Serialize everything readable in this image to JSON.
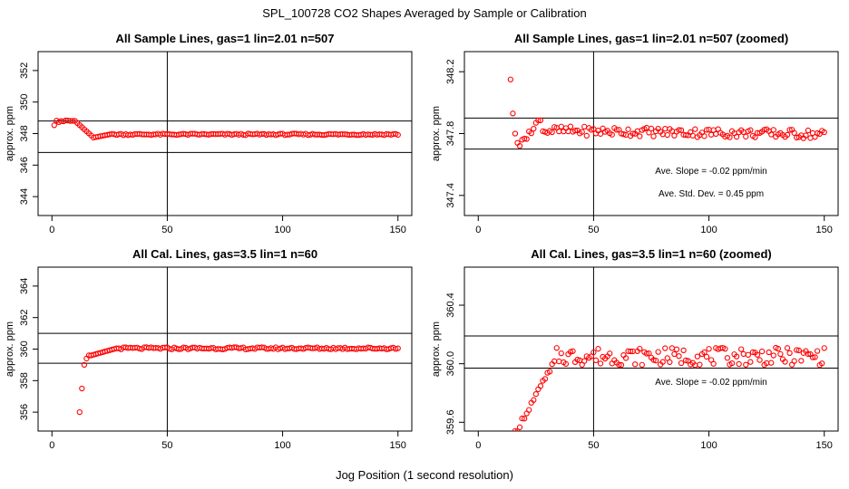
{
  "main_title": "SPL_100728  CO2 Shapes Averaged by Sample or Calibration",
  "x_axis_label": "Jog Position (1 second resolution)",
  "colors": {
    "points": "#ff0000",
    "axes": "#000000"
  },
  "chart_data": [
    {
      "type": "scatter",
      "title": "All Sample Lines, gas=1 lin=2.01 n=507",
      "ylabel": "approx. ppm",
      "xlim": [
        -6,
        156
      ],
      "ylim": [
        342.8,
        353.2
      ],
      "xticks": [
        0,
        50,
        100,
        150
      ],
      "yticks": [
        344,
        346,
        348,
        350,
        352
      ],
      "ytick_labels": [
        "344",
        "346",
        "348",
        "350",
        "352"
      ],
      "hlines": [
        348.8,
        346.8
      ],
      "vline": 50,
      "annotations": [],
      "series": [
        {
          "generator": {
            "x_start": 1,
            "x_end": 150,
            "baseline": 347.95,
            "model": "initial_overshoot_then_flat",
            "start_value": 348.8
          }
        }
      ]
    },
    {
      "type": "scatter",
      "title": "All Sample Lines, gas=1 lin=2.01 n=507 (zoomed)",
      "ylabel": "approx. ppm",
      "xlim": [
        -6,
        156
      ],
      "ylim": [
        347.27,
        348.33
      ],
      "xticks": [
        0,
        50,
        100,
        150
      ],
      "yticks": [
        347.4,
        347.8,
        348.2
      ],
      "ytick_labels": [
        "347.4",
        "347.8",
        "348.2"
      ],
      "hlines": [
        347.9,
        347.7
      ],
      "vline": 50,
      "annotations": [
        "Ave. Slope =  -0.02  ppm/min",
        "Ave. Std. Dev. =  0.45  ppm"
      ],
      "series": [
        {
          "generator": {
            "x_start": 14,
            "x_end": 150,
            "first_values": [
              348.15,
              347.93,
              347.8,
              347.74,
              347.72,
              347.76
            ],
            "baseline": 347.82,
            "model": "dip_then_flat"
          }
        }
      ]
    },
    {
      "type": "scatter",
      "title": "All Cal. Lines, gas=3.5 lin=1 n=60",
      "ylabel": "approx. ppm",
      "xlim": [
        -6,
        156
      ],
      "ylim": [
        354.8,
        365.2
      ],
      "xticks": [
        0,
        50,
        100,
        150
      ],
      "yticks": [
        356,
        358,
        360,
        362,
        364
      ],
      "ytick_labels": [
        "356",
        "358",
        "360",
        "362",
        "364"
      ],
      "hlines": [
        361.0,
        359.1
      ],
      "vline": 50,
      "annotations": [],
      "series": [
        {
          "generator": {
            "x_start": 12,
            "x_end": 150,
            "first_values": [
              356.0,
              357.5,
              359.0,
              359.4,
              359.6
            ],
            "baseline": 360.05,
            "model": "rise_then_flat"
          }
        }
      ]
    },
    {
      "type": "scatter",
      "title": "All Cal. Lines, gas=3.5 lin=1 n=60 (zoomed)",
      "ylabel": "approx. ppm",
      "xlim": [
        -6,
        156
      ],
      "ylim": [
        359.54,
        360.66
      ],
      "xticks": [
        0,
        50,
        100,
        150
      ],
      "yticks": [
        359.6,
        360.0,
        360.4
      ],
      "ytick_labels": [
        "359.6",
        "360.0",
        "360.4"
      ],
      "hlines": [
        360.19,
        359.97
      ],
      "vline": 50,
      "annotations": [
        "Ave. Slope =  -0.02  ppm/min"
      ],
      "series": [
        {
          "generator": {
            "x_start": 15,
            "x_end": 150,
            "baseline": 360.05,
            "model": "rise_then_noisy_flat"
          }
        }
      ]
    }
  ]
}
